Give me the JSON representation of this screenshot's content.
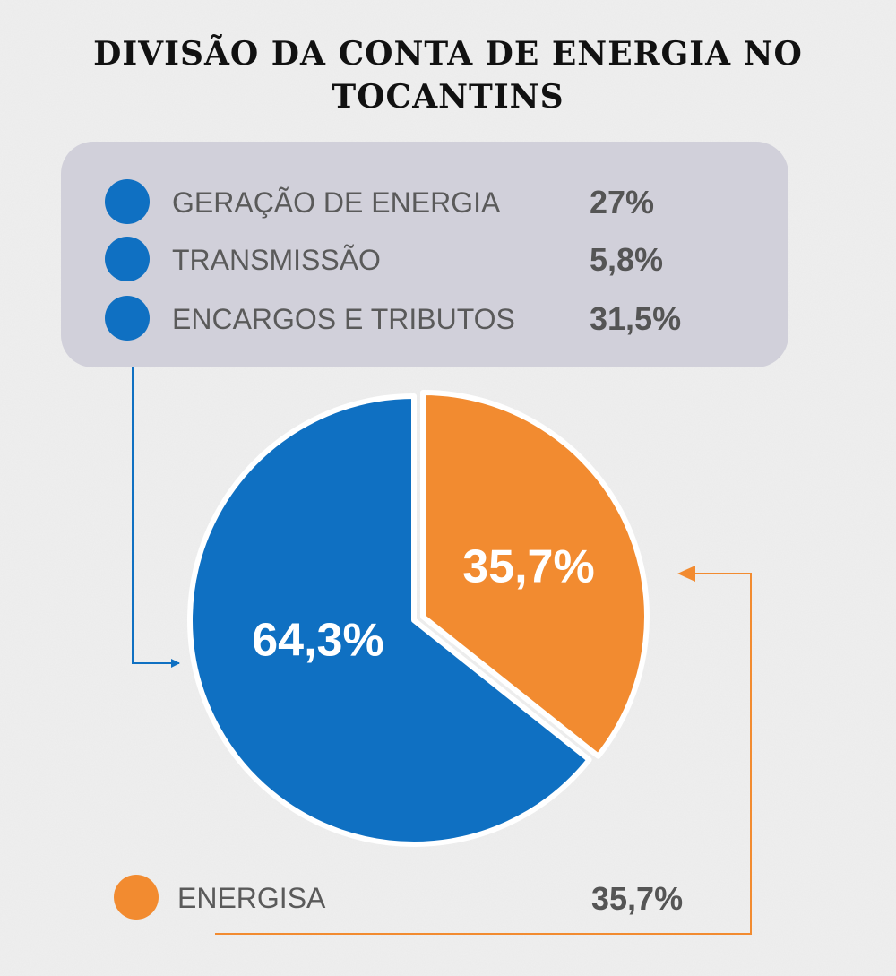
{
  "colors": {
    "blue": "#0f70c2",
    "orange": "#f28b30",
    "legend_bg": "#d1d0da",
    "background": "#efefef"
  },
  "chart_data": {
    "type": "pie",
    "title": "DIVISÃO DA CONTA DE ENERGIA NO TOCANTINS",
    "slices": [
      {
        "value": 35.7,
        "label": "35,7%",
        "color": "#f28b30"
      },
      {
        "value": 64.3,
        "label": "64,3%",
        "color": "#0f70c2"
      }
    ],
    "breakdown": [
      {
        "label": "GERAÇÃO DE ENERGIA",
        "value_text": "27%",
        "value": 27
      },
      {
        "label": "TRANSMISSÃO",
        "value_text": "5,8%",
        "value": 5.8
      },
      {
        "label": "ENCARGOS E TRIBUTOS",
        "value_text": "31,5%",
        "value": 31.5
      }
    ],
    "energisa": {
      "label": "ENERGISA",
      "value_text": "35,7%",
      "value": 35.7
    }
  }
}
